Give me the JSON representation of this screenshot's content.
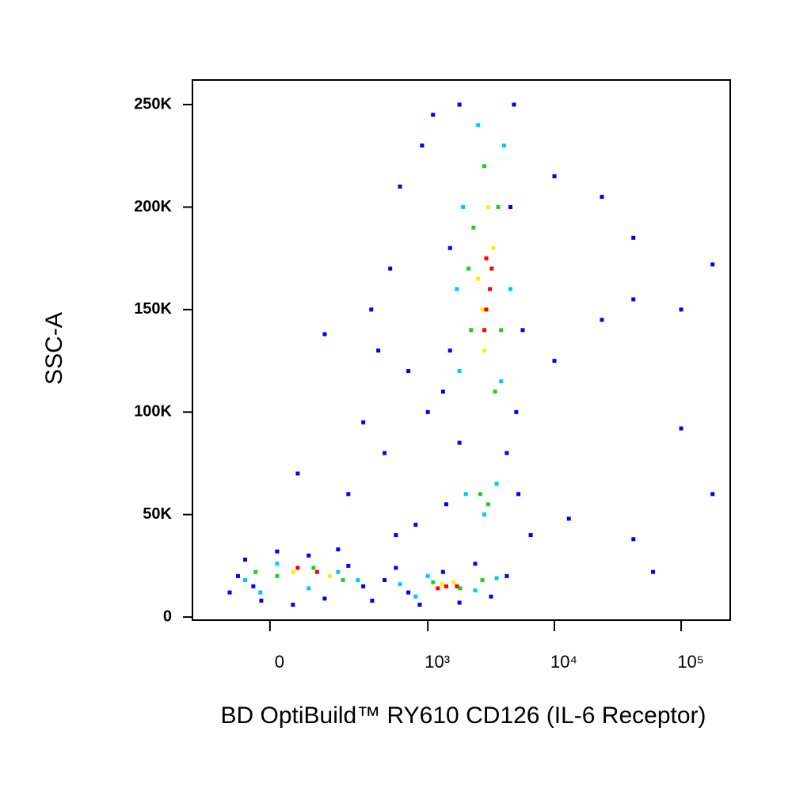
{
  "chart_data": {
    "type": "scatter",
    "xlabel": "BD OptiBuild™ RY610 CD126 (IL-6 Receptor)",
    "ylabel": "SSC-A",
    "xscale": "logicle",
    "xlim": [
      -219,
      243800
    ],
    "xticks": [
      0,
      {
        "value": 1000,
        "label": "10³"
      },
      {
        "value": 10000,
        "label": "10⁴"
      },
      {
        "value": 100000,
        "label": "10⁵"
      }
    ],
    "ylim": [
      -1500,
      262000
    ],
    "yticks": [
      0,
      {
        "value": 50000,
        "label": "50K"
      },
      {
        "value": 100000,
        "label": "100K"
      },
      {
        "value": 150000,
        "label": "150K"
      },
      {
        "value": 200000,
        "label": "200K"
      },
      {
        "value": 250000,
        "label": "250K"
      }
    ],
    "series": [
      {
        "color": "#0000ff",
        "x": [
          -91,
          -53,
          -18,
          15,
          49,
          87,
          133,
          223,
          -70,
          300,
          180,
          -35,
          356,
          556,
          862,
          1320,
          1780,
          2370,
          3160,
          4210,
          450,
          700,
          223,
          300,
          400,
          500,
          600,
          350,
          700,
          450,
          800,
          1000,
          133,
          60,
          556,
          900,
          1100,
          1320,
          1500,
          1780,
          4800,
          5620,
          5000,
          1500,
          4500,
          1780,
          4210,
          5200,
          6500,
          1400,
          10000,
          23700,
          42000,
          100000,
          177000,
          42000,
          10000,
          23700,
          100000,
          177000,
          60000,
          42000,
          13000
        ],
        "values": [
          12000,
          28000,
          8000,
          32000,
          6000,
          30000,
          9000,
          25000,
          20000,
          15000,
          33000,
          15000,
          8000,
          24000,
          6000,
          22000,
          7000,
          26000,
          10000,
          20000,
          18000,
          12000,
          60000,
          95000,
          130000,
          170000,
          210000,
          150000,
          120000,
          80000,
          45000,
          100000,
          138000,
          70000,
          40000,
          230000,
          245000,
          110000,
          180000,
          250000,
          250000,
          140000,
          100000,
          130000,
          200000,
          85000,
          80000,
          60000,
          40000,
          55000,
          215000,
          205000,
          185000,
          150000,
          172000,
          155000,
          125000,
          145000,
          92000,
          60000,
          22000,
          38000,
          48000
        ]
      },
      {
        "color": "#00c8ff",
        "x": [
          -53,
          15,
          87,
          180,
          -20,
          270,
          600,
          1000,
          2370,
          3500,
          800,
          2000,
          3500,
          2800,
          1780,
          3800,
          1900,
          4000,
          2500,
          4500,
          1700
        ],
        "values": [
          18000,
          26000,
          14000,
          22000,
          12000,
          18000,
          16000,
          20000,
          13000,
          19000,
          10000,
          60000,
          65000,
          50000,
          120000,
          115000,
          200000,
          230000,
          240000,
          160000,
          160000
        ]
      },
      {
        "color": "#22cc22",
        "x": [
          15,
          100,
          -30,
          200,
          1100,
          1800,
          2700,
          2600,
          3000,
          2200,
          3800,
          2300,
          3600,
          2800,
          2100,
          3400
        ],
        "values": [
          20000,
          24000,
          22000,
          18000,
          17000,
          14000,
          18000,
          60000,
          55000,
          140000,
          140000,
          190000,
          200000,
          220000,
          170000,
          110000
        ]
      },
      {
        "color": "#ffee00",
        "x": [
          50,
          150,
          1300,
          1600,
          2800,
          3300,
          2500,
          3000,
          2700
        ],
        "values": [
          22000,
          20000,
          16000,
          17000,
          130000,
          180000,
          165000,
          200000,
          150000
        ]
      },
      {
        "color": "#ff0000",
        "x": [
          60,
          110,
          1400,
          1200,
          1700,
          2900,
          3100,
          2800,
          3200,
          2900
        ],
        "values": [
          24000,
          22000,
          15000,
          14000,
          15000,
          150000,
          160000,
          140000,
          170000,
          175000
        ]
      }
    ]
  }
}
